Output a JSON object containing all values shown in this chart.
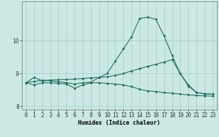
{
  "xlabel": "Humidex (Indice chaleur)",
  "xlim": [
    -0.5,
    23.5
  ],
  "ylim": [
    7.9,
    11.2
  ],
  "yticks": [
    8,
    9,
    10
  ],
  "xticks": [
    0,
    1,
    2,
    3,
    4,
    5,
    6,
    7,
    8,
    9,
    10,
    11,
    12,
    13,
    14,
    15,
    16,
    17,
    18,
    19,
    20,
    21,
    22,
    23
  ],
  "background_color": "#cce8e4",
  "grid_color": "#99cccc",
  "line_color": "#1a6b5a",
  "line1_x": [
    0,
    1,
    2,
    3,
    4,
    5,
    6,
    7,
    8,
    9,
    10,
    11,
    12,
    13,
    14,
    15,
    16,
    17,
    18,
    19,
    20,
    21,
    22,
    23
  ],
  "line1_y": [
    8.72,
    8.88,
    8.78,
    8.78,
    8.75,
    8.72,
    8.68,
    8.72,
    8.74,
    8.88,
    9.0,
    9.38,
    9.75,
    10.12,
    10.68,
    10.72,
    10.65,
    10.15,
    9.55,
    9.0,
    8.65,
    8.42,
    8.38,
    8.37
  ],
  "line2_x": [
    0,
    1,
    2,
    3,
    4,
    5,
    6,
    7,
    8,
    9,
    10,
    11,
    12,
    13,
    14,
    15,
    16,
    17,
    18,
    19,
    20,
    21,
    22,
    23
  ],
  "line2_y": [
    8.72,
    8.76,
    8.79,
    8.8,
    8.81,
    8.82,
    8.83,
    8.85,
    8.87,
    8.88,
    8.9,
    8.94,
    9.0,
    9.08,
    9.15,
    9.22,
    9.28,
    9.35,
    9.42,
    9.0,
    8.62,
    8.42,
    8.38,
    8.37
  ],
  "line3_x": [
    0,
    1,
    2,
    3,
    4,
    5,
    6,
    7,
    8,
    9,
    10,
    11,
    12,
    13,
    14,
    15,
    16,
    17,
    18,
    19,
    20,
    21,
    22,
    23
  ],
  "line3_y": [
    8.72,
    8.65,
    8.72,
    8.72,
    8.7,
    8.68,
    8.55,
    8.65,
    8.72,
    8.72,
    8.7,
    8.68,
    8.65,
    8.6,
    8.52,
    8.47,
    8.45,
    8.42,
    8.4,
    8.37,
    8.35,
    8.33,
    8.32,
    8.31
  ],
  "markersize": 2.0,
  "linewidth": 0.8,
  "tick_fontsize": 5.5,
  "xlabel_fontsize": 6.0
}
